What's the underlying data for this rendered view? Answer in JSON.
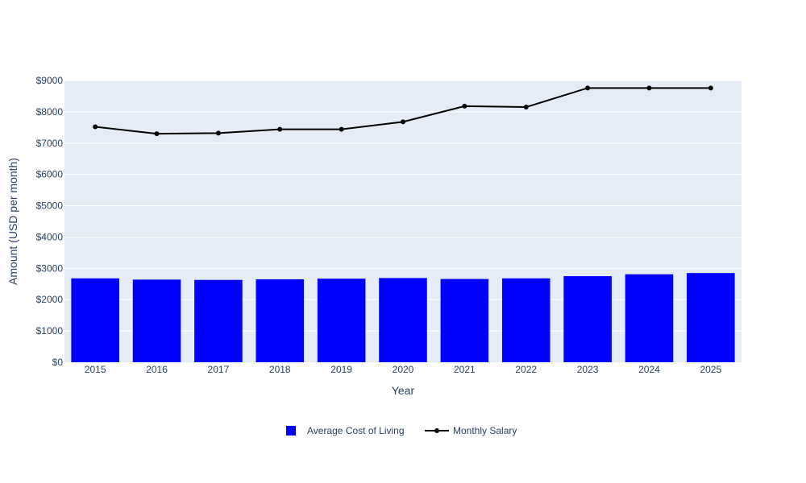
{
  "chart_data": {
    "type": "bar",
    "categories": [
      "2015",
      "2016",
      "2017",
      "2018",
      "2019",
      "2020",
      "2021",
      "2022",
      "2023",
      "2024",
      "2025"
    ],
    "series": [
      {
        "name": "Average Cost of Living",
        "type": "bar",
        "color": "#0000ff",
        "values": [
          2680,
          2640,
          2630,
          2650,
          2670,
          2690,
          2660,
          2680,
          2750,
          2810,
          2850
        ]
      },
      {
        "name": "Monthly Salary",
        "type": "line",
        "color": "#000000",
        "values": [
          7520,
          7300,
          7320,
          7440,
          7440,
          7680,
          8180,
          8150,
          8760,
          8760,
          8760
        ]
      }
    ],
    "xlabel": "Year",
    "ylabel": "Amount (USD per month)",
    "ylim": [
      0,
      9000
    ],
    "yticks": [
      0,
      1000,
      2000,
      3000,
      4000,
      5000,
      6000,
      7000,
      8000,
      9000
    ],
    "ytick_labels": [
      "$0",
      "$1000",
      "$2000",
      "$3000",
      "$4000",
      "$5000",
      "$6000",
      "$7000",
      "$8000",
      "$9000"
    ],
    "grid": true,
    "legend_position": "bottom-center",
    "plot_background": "#e5ecf6"
  }
}
